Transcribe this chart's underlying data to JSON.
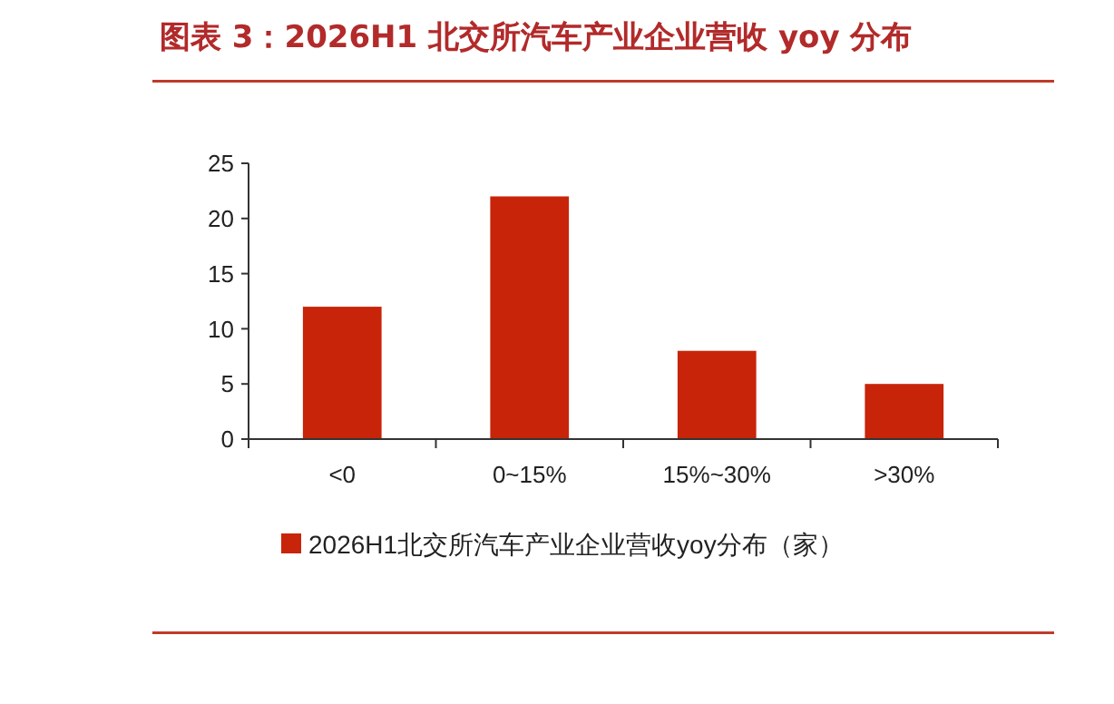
{
  "chart_data": {
    "type": "bar",
    "title": "图表 3：2026H1 北交所汽车产业企业营收 yoy 分布",
    "categories": [
      "<0",
      "0~15%",
      "15%~30%",
      ">30%"
    ],
    "series": [
      {
        "name": "2026H1北交所汽车产业企业营收yoy分布（家）",
        "color": "#c8240a",
        "values": [
          12,
          22,
          8,
          5
        ]
      }
    ],
    "ylim": [
      0,
      25
    ],
    "yticks": [
      0,
      5,
      10,
      15,
      20,
      25
    ],
    "grid": false,
    "legend": "bottom"
  }
}
